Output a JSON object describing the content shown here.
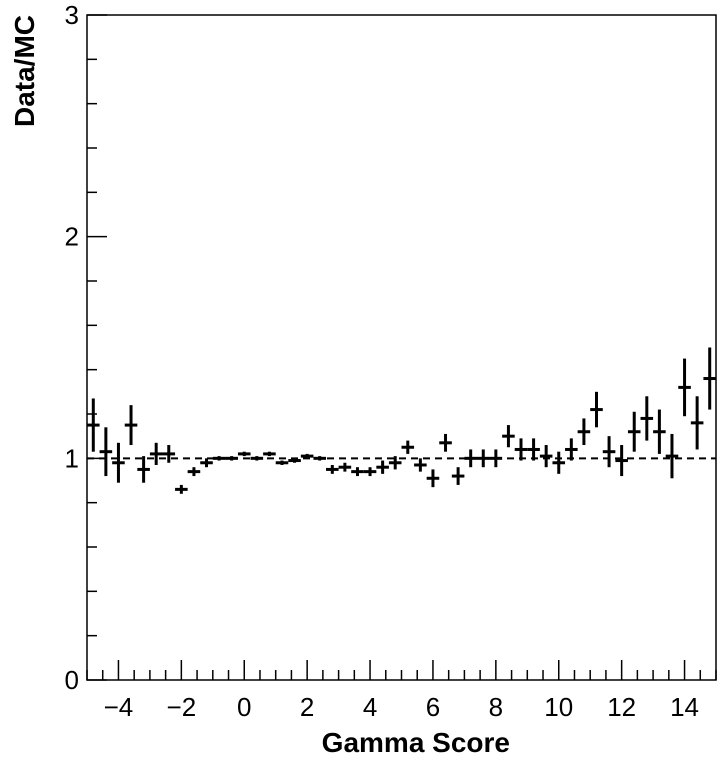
{
  "chart_data": {
    "type": "scatter",
    "title": "",
    "xlabel": "Gamma Score",
    "ylabel": "Data/MC",
    "xlim": [
      -5,
      15
    ],
    "ylim": [
      0,
      3
    ],
    "x_ticks": [
      -4,
      -2,
      0,
      2,
      4,
      6,
      8,
      10,
      12,
      14
    ],
    "x_tick_labels": [
      "−4",
      "−2",
      "0",
      "2",
      "4",
      "6",
      "8",
      "10",
      "12",
      "14"
    ],
    "y_ticks": [
      0,
      1,
      2,
      3
    ],
    "y_tick_labels": [
      "0",
      "1",
      "2",
      "3"
    ],
    "reference_line": {
      "y": 1,
      "style": "dashed"
    },
    "bin_width": 0.4,
    "grid": false,
    "series": [
      {
        "points": [
          {
            "x": -4.8,
            "y": 1.15,
            "err": 0.12
          },
          {
            "x": -4.4,
            "y": 1.03,
            "err": 0.11
          },
          {
            "x": -4.0,
            "y": 0.98,
            "err": 0.09
          },
          {
            "x": -3.6,
            "y": 1.15,
            "err": 0.09
          },
          {
            "x": -3.2,
            "y": 0.95,
            "err": 0.06
          },
          {
            "x": -2.8,
            "y": 1.02,
            "err": 0.05
          },
          {
            "x": -2.4,
            "y": 1.02,
            "err": 0.04
          },
          {
            "x": -2.0,
            "y": 0.86,
            "err": 0.02
          },
          {
            "x": -1.6,
            "y": 0.94,
            "err": 0.02
          },
          {
            "x": -1.2,
            "y": 0.98,
            "err": 0.02
          },
          {
            "x": -0.8,
            "y": 1.0,
            "err": 0.01
          },
          {
            "x": -0.4,
            "y": 1.0,
            "err": 0.01
          },
          {
            "x": 0.0,
            "y": 1.02,
            "err": 0.01
          },
          {
            "x": 0.4,
            "y": 1.0,
            "err": 0.01
          },
          {
            "x": 0.8,
            "y": 1.02,
            "err": 0.01
          },
          {
            "x": 1.2,
            "y": 0.98,
            "err": 0.01
          },
          {
            "x": 1.6,
            "y": 0.99,
            "err": 0.01
          },
          {
            "x": 2.0,
            "y": 1.01,
            "err": 0.01
          },
          {
            "x": 2.4,
            "y": 1.0,
            "err": 0.01
          },
          {
            "x": 2.8,
            "y": 0.95,
            "err": 0.02
          },
          {
            "x": 3.2,
            "y": 0.96,
            "err": 0.02
          },
          {
            "x": 3.6,
            "y": 0.94,
            "err": 0.02
          },
          {
            "x": 4.0,
            "y": 0.94,
            "err": 0.02
          },
          {
            "x": 4.4,
            "y": 0.96,
            "err": 0.03
          },
          {
            "x": 4.8,
            "y": 0.98,
            "err": 0.03
          },
          {
            "x": 5.2,
            "y": 1.05,
            "err": 0.03
          },
          {
            "x": 5.6,
            "y": 0.97,
            "err": 0.03
          },
          {
            "x": 6.0,
            "y": 0.91,
            "err": 0.04
          },
          {
            "x": 6.4,
            "y": 1.07,
            "err": 0.04
          },
          {
            "x": 6.8,
            "y": 0.92,
            "err": 0.04
          },
          {
            "x": 7.2,
            "y": 1.0,
            "err": 0.04
          },
          {
            "x": 7.6,
            "y": 1.0,
            "err": 0.04
          },
          {
            "x": 8.0,
            "y": 1.0,
            "err": 0.04
          },
          {
            "x": 8.4,
            "y": 1.1,
            "err": 0.05
          },
          {
            "x": 8.8,
            "y": 1.04,
            "err": 0.05
          },
          {
            "x": 9.2,
            "y": 1.04,
            "err": 0.05
          },
          {
            "x": 9.6,
            "y": 1.01,
            "err": 0.05
          },
          {
            "x": 10.0,
            "y": 0.98,
            "err": 0.05
          },
          {
            "x": 10.4,
            "y": 1.04,
            "err": 0.05
          },
          {
            "x": 10.8,
            "y": 1.12,
            "err": 0.06
          },
          {
            "x": 11.2,
            "y": 1.22,
            "err": 0.08
          },
          {
            "x": 11.6,
            "y": 1.03,
            "err": 0.07
          },
          {
            "x": 12.0,
            "y": 0.99,
            "err": 0.07
          },
          {
            "x": 12.4,
            "y": 1.12,
            "err": 0.09
          },
          {
            "x": 12.8,
            "y": 1.18,
            "err": 0.1
          },
          {
            "x": 13.2,
            "y": 1.12,
            "err": 0.1
          },
          {
            "x": 13.6,
            "y": 1.01,
            "err": 0.1
          },
          {
            "x": 14.0,
            "y": 1.32,
            "err": 0.13
          },
          {
            "x": 14.4,
            "y": 1.16,
            "err": 0.12
          },
          {
            "x": 14.8,
            "y": 1.36,
            "err": 0.14
          }
        ]
      }
    ]
  },
  "colors": {
    "marker": "#000000",
    "axis": "#000000",
    "background": "#ffffff"
  }
}
